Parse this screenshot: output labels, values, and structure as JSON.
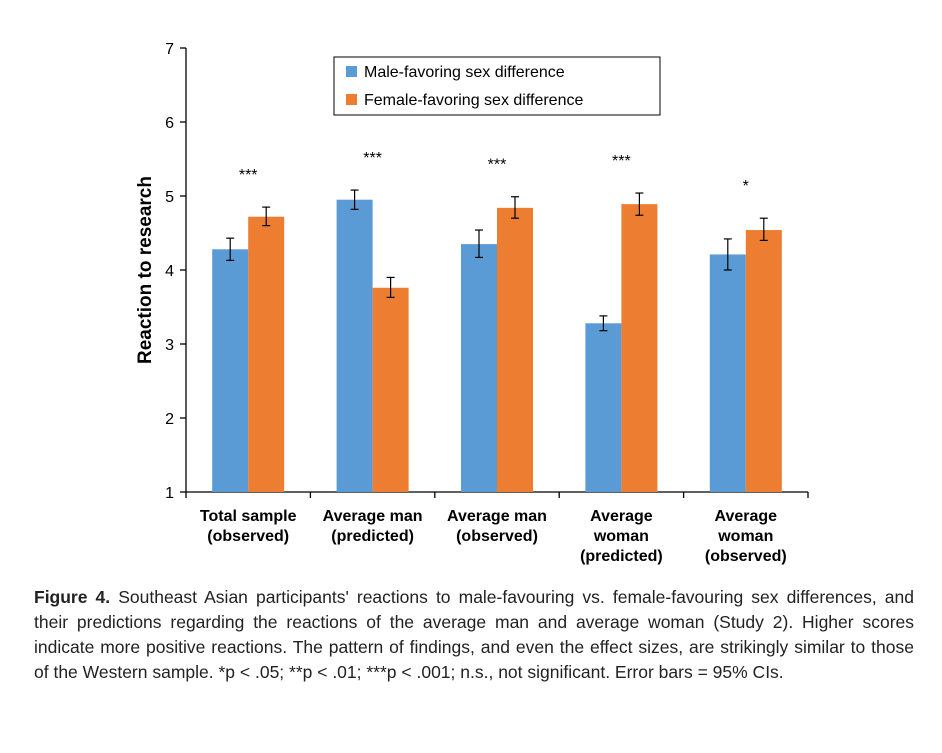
{
  "chart_data": {
    "type": "bar",
    "title": "",
    "xlabel": "",
    "ylabel": "Reaction to research",
    "ylim": [
      1,
      7
    ],
    "yticks": [
      "1",
      "2",
      "3",
      "4",
      "5",
      "6",
      "7"
    ],
    "categories": [
      [
        "Total sample",
        "(observed)"
      ],
      [
        "Average man",
        "(predicted)"
      ],
      [
        "Average man",
        "(observed)"
      ],
      [
        "Average",
        "woman",
        "(predicted)"
      ],
      [
        "Average",
        "woman",
        "(observed)"
      ]
    ],
    "series": [
      {
        "name": "Male-favoring sex difference",
        "color": "#5B9BD5",
        "values": [
          4.28,
          4.95,
          4.35,
          3.28,
          4.21
        ],
        "err_low": [
          4.13,
          4.82,
          4.17,
          3.18,
          4.0
        ],
        "err_high": [
          4.43,
          5.08,
          4.54,
          3.38,
          4.42
        ]
      },
      {
        "name": "Female-favoring sex difference",
        "color": "#ED7D31",
        "values": [
          4.72,
          3.76,
          4.84,
          4.89,
          4.54
        ],
        "err_low": [
          4.6,
          3.63,
          4.7,
          4.74,
          4.4
        ],
        "err_high": [
          4.85,
          3.9,
          4.99,
          5.04,
          4.7
        ]
      }
    ],
    "significance": [
      "***",
      "***",
      "***",
      "***",
      "*"
    ],
    "legend_position": "top-center",
    "grid": false
  },
  "caption": {
    "label": "Figure 4.",
    "text": "Southeast Asian participants' reactions to male-favouring vs. female-favouring sex differences, and their predictions regarding the reactions of the average man and average woman (Study 2). Higher scores indicate more positive reactions. The pattern of findings, and even the effect sizes, are strikingly similar to those of the Western sample. *p < .05; **p < .01; ***p < .001; n.s., not significant. Error bars = 95% CIs."
  }
}
